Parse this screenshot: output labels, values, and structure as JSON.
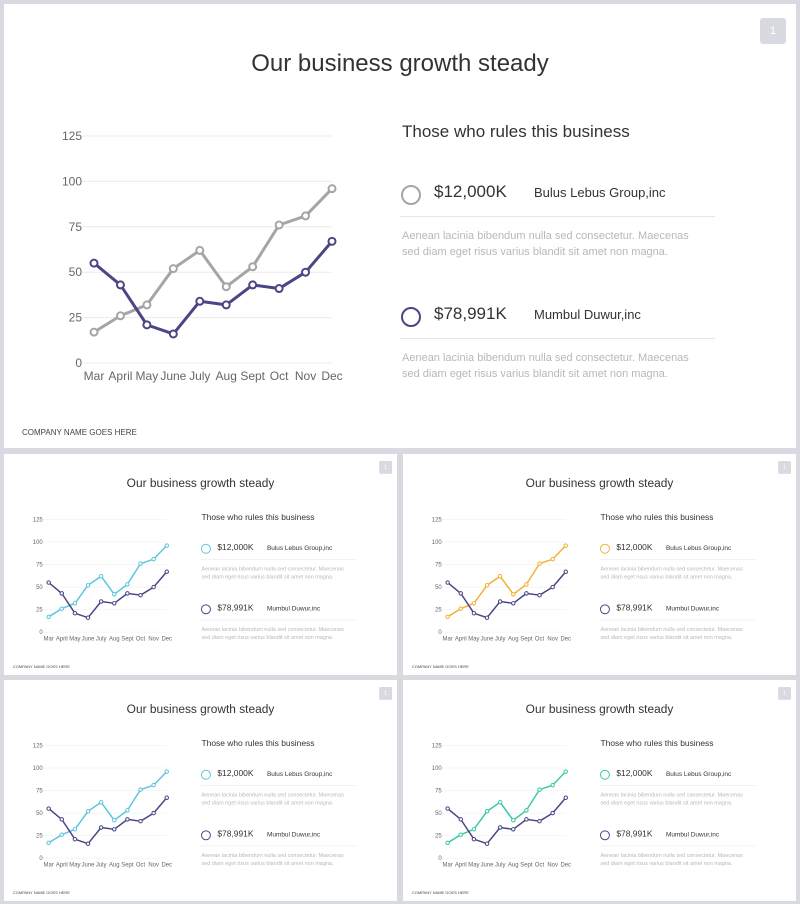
{
  "page_number": "1",
  "title": "Our business growth steady",
  "subtitle": "Those who rules this business",
  "entries": [
    {
      "amount": "$12,000K",
      "company": "Bulus Lebus Group,inc",
      "description": "Aenean lacinia bibendum nulla sed consectetur. Maecenas sed diam eget risus varius blandit sit amet non magna."
    },
    {
      "amount": "$78,991K",
      "company": "Mumbul Duwur,inc",
      "description": "Aenean lacinia bibendum nulla sed consectetur. Maecenas sed diam eget risus varius blandit sit amet non magna."
    }
  ],
  "footer": "COMPANY NAME GOES HERE",
  "colors": {
    "navy": "#4a4685",
    "gray": "#a5a5a8",
    "cyan": "#5bc6dd",
    "orange": "#f2b134",
    "teal": "#3cc7a6"
  },
  "variants": [
    {
      "accent": "#a5a5a8"
    },
    {
      "accent": "#5bc6dd"
    },
    {
      "accent": "#f2b134"
    },
    {
      "accent": "#5bc6dd"
    },
    {
      "accent": "#3cc7a6"
    }
  ],
  "chart_data": {
    "type": "line",
    "categories": [
      "Mar",
      "April",
      "May",
      "June",
      "July",
      "Aug",
      "Sept",
      "Oct",
      "Nov",
      "Dec"
    ],
    "ylim": [
      0,
      125
    ],
    "yticks": [
      0,
      25,
      50,
      75,
      100,
      125
    ],
    "grid": true,
    "series": [
      {
        "values": [
          17,
          26,
          32,
          52,
          62,
          42,
          53,
          76,
          81,
          96
        ]
      },
      {
        "values": [
          55,
          43,
          21,
          16,
          34,
          32,
          43,
          41,
          50,
          67
        ]
      }
    ]
  }
}
